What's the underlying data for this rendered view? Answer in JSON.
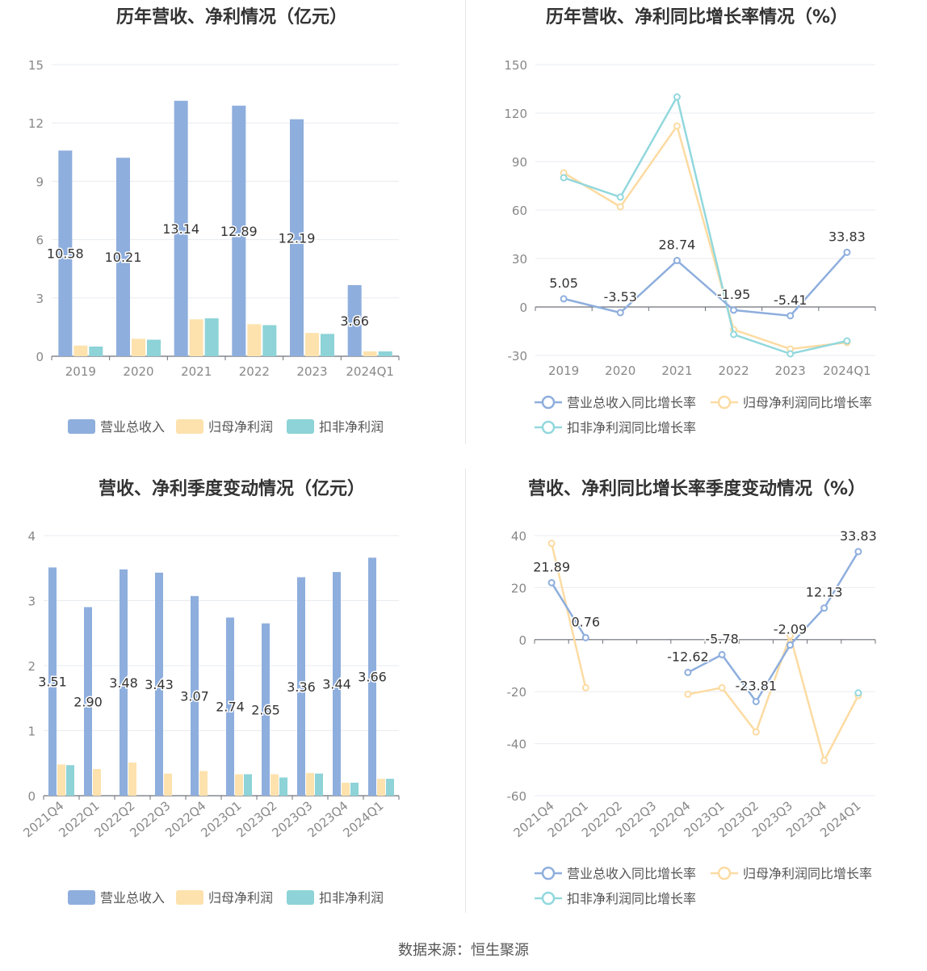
{
  "source": "数据来源：恒生聚源",
  "colors": {
    "revenue": "#8eaedd",
    "net_profit": "#fde2ae",
    "deducted": "#8dd3d7",
    "revenue_line": "#8eaedd",
    "net_line": "#fcdba2",
    "deducted_line": "#92d8dd"
  },
  "chart_data": [
    {
      "id": "annual-bar",
      "type": "bar",
      "title": "历年营收、净利情况（亿元）",
      "categories": [
        "2019",
        "2020",
        "2021",
        "2022",
        "2023",
        "2024Q1"
      ],
      "ylim": [
        0,
        15
      ],
      "yticks": [
        0,
        3,
        6,
        9,
        12,
        15
      ],
      "legend": "bottom",
      "grid": true,
      "series": [
        {
          "name": "营业总收入",
          "values": [
            10.58,
            10.21,
            13.14,
            12.89,
            12.19,
            3.66
          ],
          "labels": [
            "10.58",
            "10.21",
            "13.14",
            "12.89",
            "12.19",
            "3.66"
          ]
        },
        {
          "name": "归母净利润",
          "values": [
            0.55,
            0.9,
            1.9,
            1.65,
            1.2,
            0.25
          ]
        },
        {
          "name": "扣非净利润",
          "values": [
            0.5,
            0.85,
            1.95,
            1.6,
            1.15,
            0.25
          ]
        }
      ]
    },
    {
      "id": "annual-line",
      "type": "line",
      "title": "历年营收、净利同比增长率情况（%）",
      "categories": [
        "2019",
        "2020",
        "2021",
        "2022",
        "2023",
        "2024Q1"
      ],
      "ylim": [
        -30,
        150
      ],
      "yticks": [
        -30,
        0,
        30,
        60,
        90,
        120,
        150
      ],
      "legend": "bottom",
      "grid": true,
      "series": [
        {
          "name": "营业总收入同比增长率",
          "values": [
            5.05,
            -3.53,
            28.74,
            -1.95,
            -5.41,
            33.83
          ],
          "labels": [
            "5.05",
            "-3.53",
            "28.74",
            "-1.95",
            "-5.41",
            "33.83"
          ]
        },
        {
          "name": "归母净利润同比增长率",
          "values": [
            83,
            62,
            112,
            -14,
            -26,
            -22
          ]
        },
        {
          "name": "扣非净利润同比增长率",
          "values": [
            80,
            68,
            130,
            -17,
            -29,
            -21
          ]
        }
      ]
    },
    {
      "id": "quarter-bar",
      "type": "bar",
      "title": "营收、净利季度变动情况（亿元）",
      "categories": [
        "2021Q4",
        "2022Q1",
        "2022Q2",
        "2022Q3",
        "2022Q4",
        "2023Q1",
        "2023Q2",
        "2023Q3",
        "2023Q4",
        "2024Q1"
      ],
      "ylim": [
        0,
        4
      ],
      "yticks": [
        0,
        1,
        2,
        3,
        4
      ],
      "legend": "bottom",
      "grid": true,
      "series": [
        {
          "name": "营业总收入",
          "values": [
            3.51,
            2.9,
            3.48,
            3.43,
            3.07,
            2.74,
            2.65,
            3.36,
            3.44,
            3.66
          ],
          "labels": [
            "3.51",
            "2.90",
            "3.48",
            "3.43",
            "3.07",
            "2.74",
            "2.65",
            "3.36",
            "3.44",
            "3.66"
          ]
        },
        {
          "name": "归母净利润",
          "values": [
            0.48,
            0.41,
            0.51,
            0.34,
            0.38,
            0.33,
            0.33,
            0.35,
            0.2,
            0.26
          ]
        },
        {
          "name": "扣非净利润",
          "values": [
            0.47,
            null,
            null,
            null,
            null,
            0.33,
            0.28,
            0.34,
            0.2,
            0.26
          ]
        }
      ]
    },
    {
      "id": "quarter-line",
      "type": "line",
      "title": "营收、净利同比增长率季度变动情况（%）",
      "categories": [
        "2021Q4",
        "2022Q1",
        "2022Q2",
        "2022Q3",
        "2022Q4",
        "2023Q1",
        "2023Q2",
        "2023Q3",
        "2023Q4",
        "2024Q1"
      ],
      "ylim": [
        -60,
        40
      ],
      "yticks": [
        -60,
        -40,
        -20,
        0,
        20,
        40
      ],
      "legend": "bottom",
      "grid": true,
      "series": [
        {
          "name": "营业总收入同比增长率",
          "values": [
            21.89,
            0.76,
            null,
            null,
            -12.62,
            -5.78,
            -23.81,
            -2.09,
            12.13,
            33.83
          ],
          "labels": [
            "21.89",
            "0.76",
            "",
            "",
            "-12.62",
            "-5.78",
            "-23.81",
            "-2.09",
            "12.13",
            "33.83"
          ]
        },
        {
          "name": "归母净利润同比增长率",
          "values": [
            37,
            -18.5,
            null,
            null,
            -21,
            -18.5,
            -35.5,
            1.5,
            -46.5,
            -21.5
          ]
        },
        {
          "name": "扣非净利润同比增长率",
          "values": [
            null,
            null,
            null,
            null,
            null,
            null,
            null,
            null,
            null,
            -20.5
          ]
        }
      ]
    }
  ]
}
